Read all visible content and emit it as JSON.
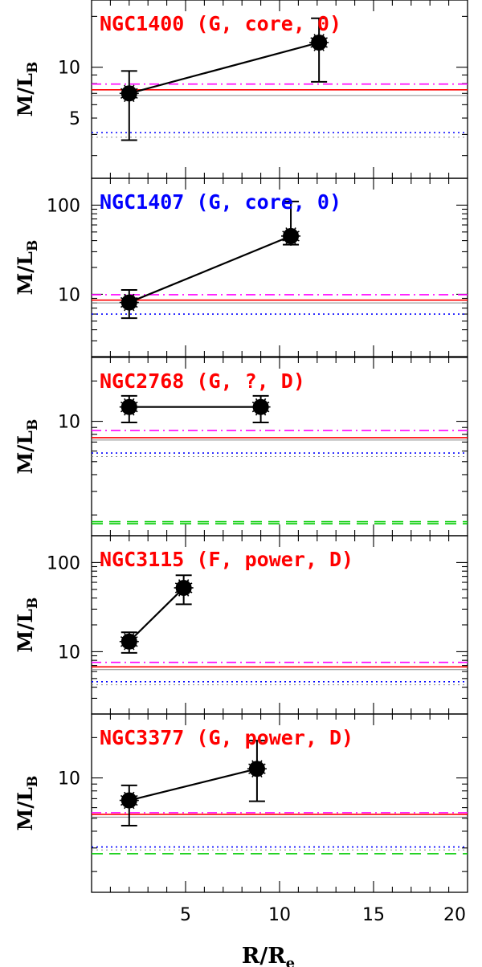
{
  "figure": {
    "xlabel": "R/R",
    "xlabel_sub": "e",
    "ylabel": "M/L",
    "ylabel_sub": "B",
    "x_tick_labels": [
      "5",
      "10",
      "15",
      "20"
    ]
  },
  "chart_data": [
    {
      "type": "scatter",
      "title": "NGC1400 (G, core, 0)",
      "title_color": "#ff0000",
      "scale": "log",
      "xlim": [
        0,
        20
      ],
      "ylim": [
        2.2,
        25
      ],
      "y_tick_labels": [
        5,
        10
      ],
      "series": [
        {
          "kind": "points",
          "x": [
            2.0,
            12.1
          ],
          "y": [
            7.0,
            14.0
          ],
          "err_lo": [
            3.7,
            8.2
          ],
          "err_hi": [
            9.5,
            19.5
          ]
        }
      ],
      "reference_lines": [
        {
          "style": "dashdot",
          "color": "#ff00ff",
          "y": 7.95
        },
        {
          "style": "solid",
          "color": "#ff0000",
          "y": 7.35
        },
        {
          "style": "solid",
          "color": "#888888",
          "y": 6.8
        },
        {
          "style": "dotted",
          "color": "#0000ff",
          "y": 4.1
        },
        {
          "style": "dotted",
          "color": "#888888",
          "y": 3.85
        }
      ]
    },
    {
      "type": "scatter",
      "title": "NGC1407 (G, core, 0)",
      "title_color": "#0000ff",
      "scale": "log",
      "xlim": [
        0,
        20
      ],
      "ylim": [
        2.0,
        200
      ],
      "y_tick_labels": [
        10,
        100
      ],
      "series": [
        {
          "kind": "points",
          "x": [
            2.0,
            10.6
          ],
          "y": [
            8.1,
            45
          ],
          "err_lo": [
            5.4,
            36
          ],
          "err_hi": [
            11.2,
            110
          ]
        }
      ],
      "reference_lines": [
        {
          "style": "dashdot",
          "color": "#ff00ff",
          "y": 9.9
        },
        {
          "style": "solid",
          "color": "#ff0000",
          "y": 8.6
        },
        {
          "style": "solid",
          "color": "#888888",
          "y": 8.0
        },
        {
          "style": "dotted",
          "color": "#0000ff",
          "y": 6.0
        }
      ]
    },
    {
      "type": "scatter",
      "title": "NGC2768  (G, ?, D)",
      "title_color": "#ff0000",
      "scale": "log",
      "xlim": [
        0,
        20
      ],
      "ylim": [
        1.4,
        30
      ],
      "y_tick_labels": [
        10
      ],
      "series": [
        {
          "kind": "points",
          "x": [
            2.0,
            9.0
          ],
          "y": [
            12.8,
            12.8
          ],
          "err_lo": [
            9.8,
            9.8
          ],
          "err_hi": [
            15.5,
            15.5
          ]
        }
      ],
      "reference_lines": [
        {
          "style": "dashdot",
          "color": "#ff00ff",
          "y": 8.55
        },
        {
          "style": "solid",
          "color": "#ff0000",
          "y": 7.55
        },
        {
          "style": "solid",
          "color": "#888888",
          "y": 7.25
        },
        {
          "style": "dotted",
          "color": "#0000ff",
          "y": 5.8
        },
        {
          "style": "dotted",
          "color": "#888888",
          "y": 5.45
        },
        {
          "style": "dashed",
          "color": "#00cc00",
          "y": 1.78
        },
        {
          "style": "dashed",
          "color": "#00cc00",
          "y": 1.72
        }
      ]
    },
    {
      "type": "scatter",
      "title": "NGC3115 (F, power, D)",
      "title_color": "#ff0000",
      "scale": "log",
      "xlim": [
        0,
        20
      ],
      "ylim": [
        2.0,
        200
      ],
      "y_tick_labels": [
        10,
        100
      ],
      "series": [
        {
          "kind": "points",
          "x": [
            2.0,
            4.9
          ],
          "y": [
            13.0,
            52
          ],
          "err_lo": [
            9.7,
            34
          ],
          "err_hi": [
            16.5,
            72
          ]
        }
      ],
      "reference_lines": [
        {
          "style": "dashdot",
          "color": "#ff00ff",
          "y": 7.6
        },
        {
          "style": "solid",
          "color": "#ff0000",
          "y": 6.75
        },
        {
          "style": "solid",
          "color": "#888888",
          "y": 6.3
        },
        {
          "style": "dotted",
          "color": "#0000ff",
          "y": 4.6
        },
        {
          "style": "dotted",
          "color": "#888888",
          "y": 4.25
        }
      ]
    },
    {
      "type": "scatter",
      "title": "NGC3377 (G, power, D)",
      "title_color": "#ff0000",
      "scale": "log",
      "xlim": [
        0,
        20
      ],
      "ylim": [
        1.4,
        30
      ],
      "y_tick_labels": [
        10
      ],
      "series": [
        {
          "kind": "points",
          "x": [
            2.0,
            8.8
          ],
          "y": [
            6.8,
            11.7
          ],
          "err_lo": [
            4.4,
            6.7
          ],
          "err_hi": [
            8.8,
            19.0
          ]
        }
      ],
      "reference_lines": [
        {
          "style": "dashdot",
          "color": "#ff00ff",
          "y": 5.5
        },
        {
          "style": "solid",
          "color": "#ff0000",
          "y": 5.35
        },
        {
          "style": "solid",
          "color": "#888888",
          "y": 5.1
        },
        {
          "style": "dotted",
          "color": "#0000ff",
          "y": 3.05
        },
        {
          "style": "dotted",
          "color": "#888888",
          "y": 2.9
        },
        {
          "style": "dashed",
          "color": "#00cc00",
          "y": 2.72
        }
      ]
    }
  ]
}
